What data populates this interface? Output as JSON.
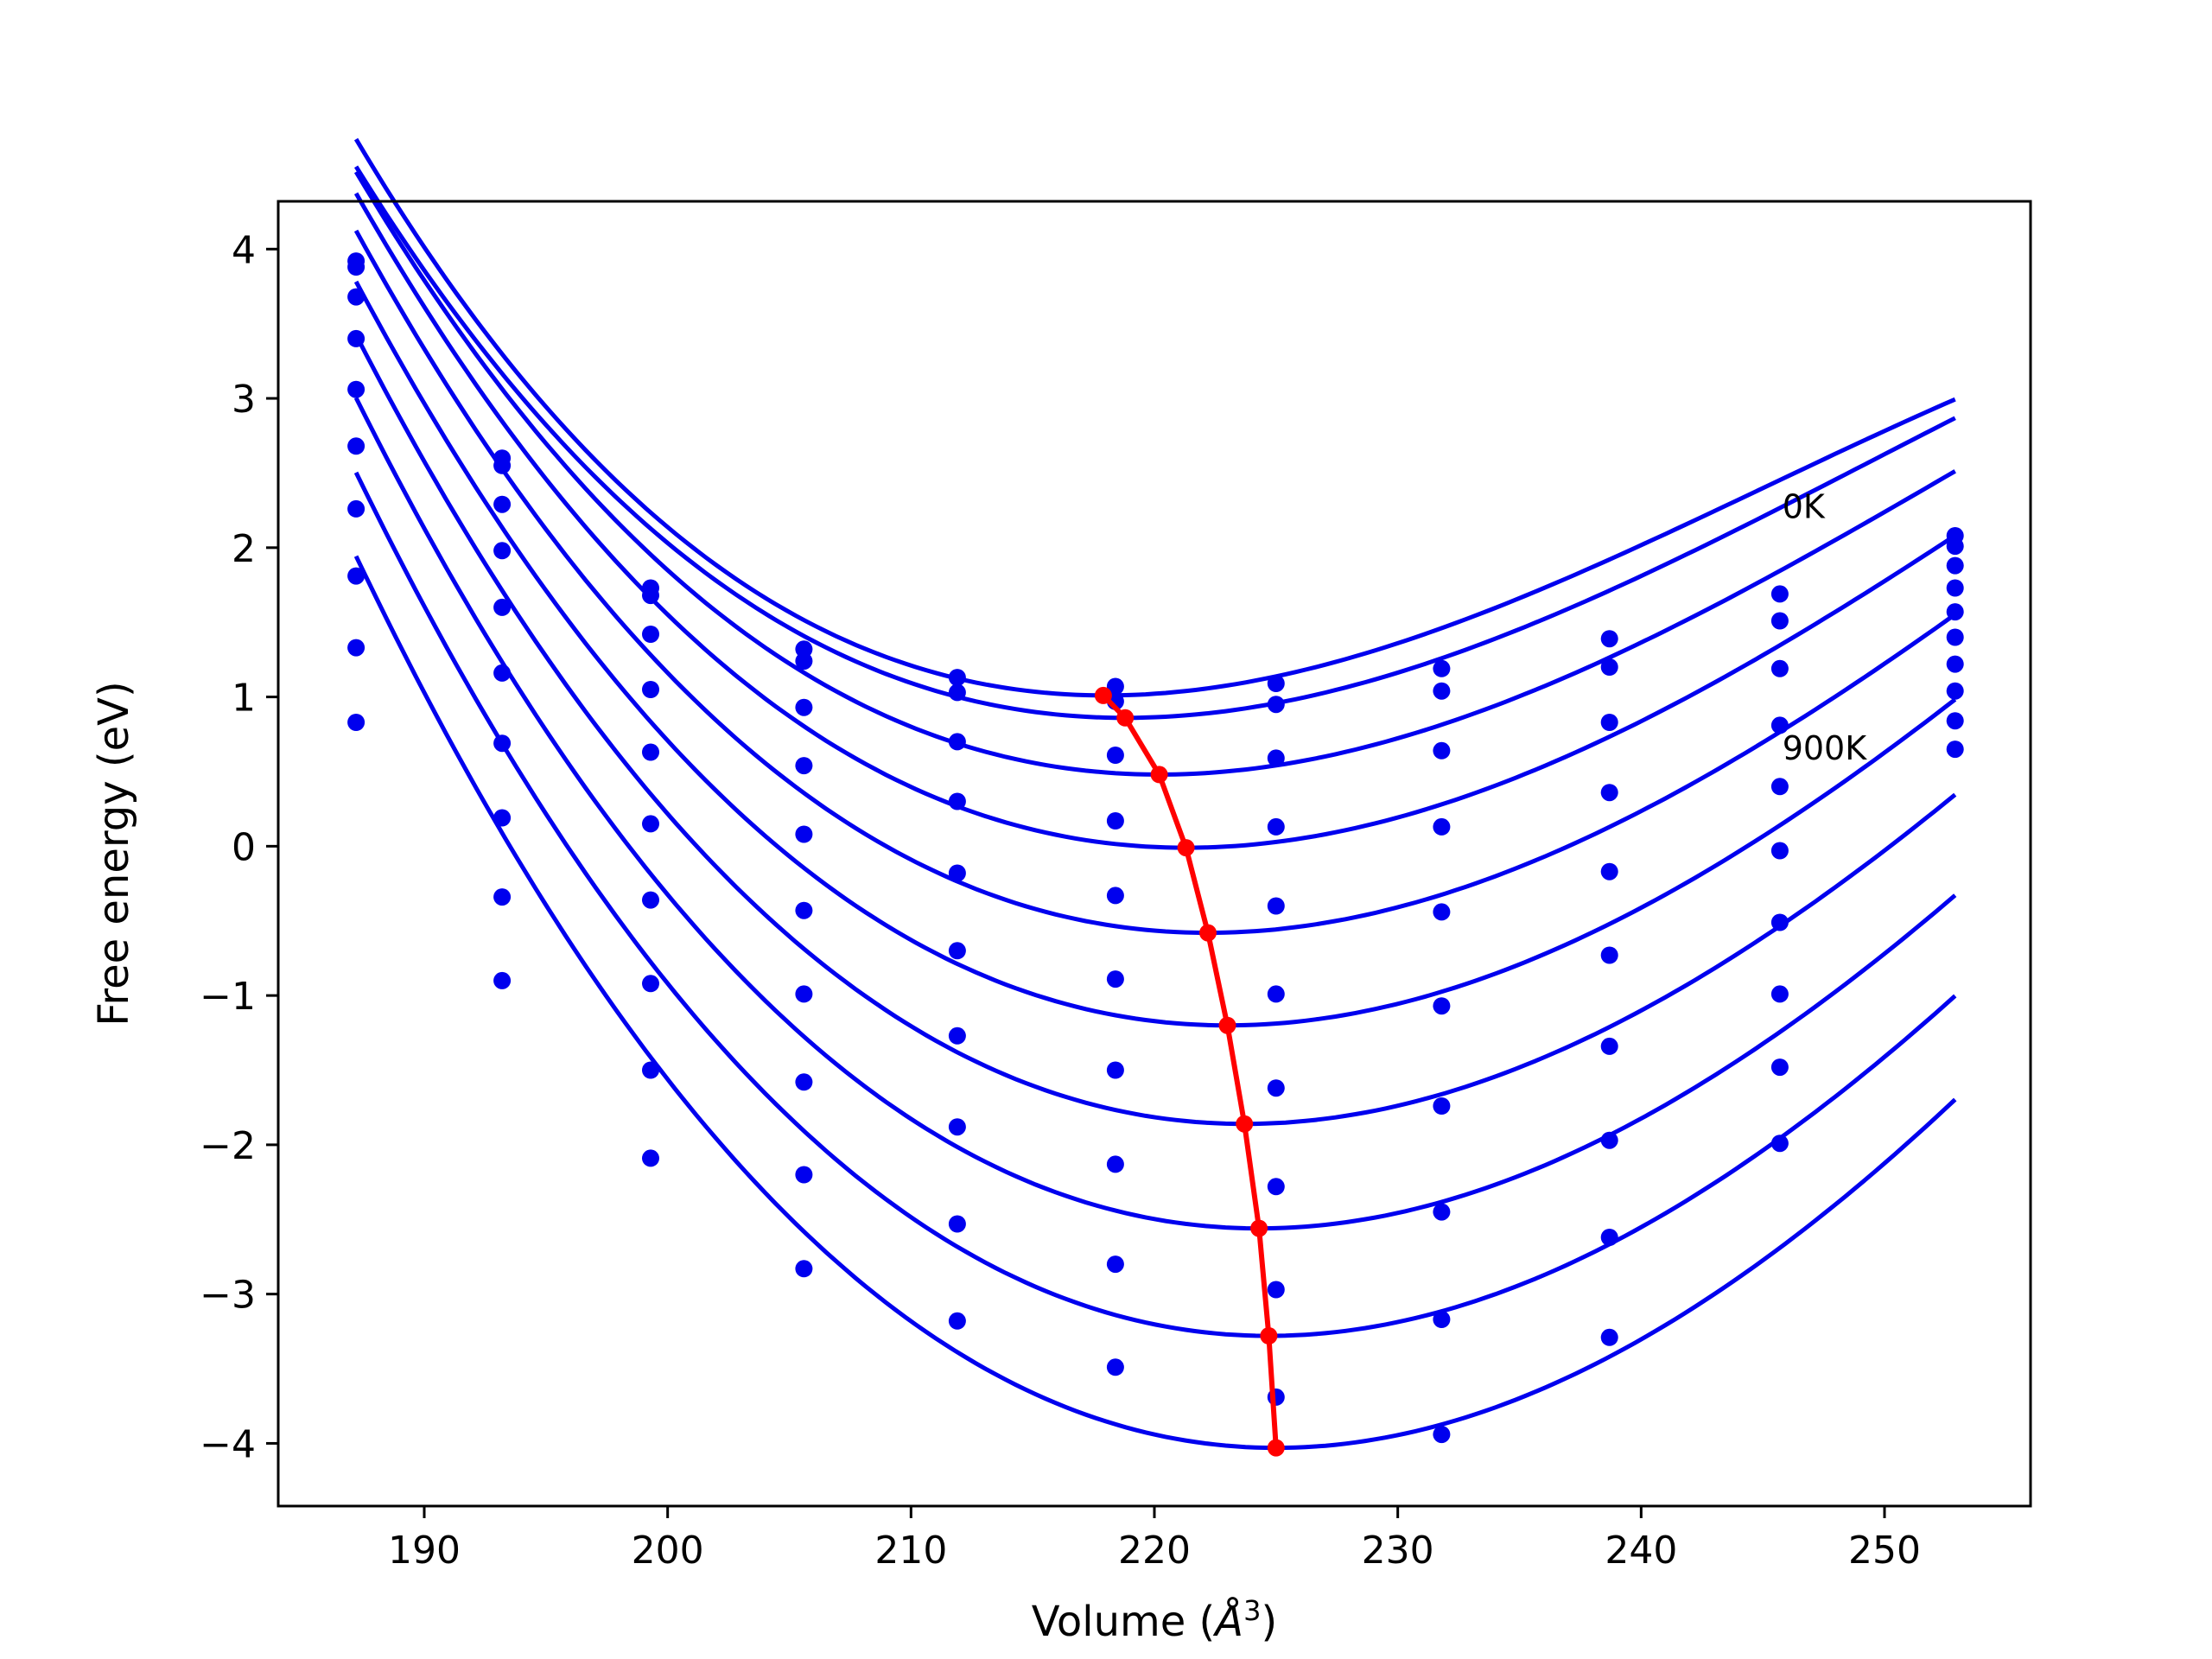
{
  "chart_data": {
    "type": "scatter",
    "title": "",
    "xlabel_main": "Volume (",
    "xlabel_unit": "Å",
    "xlabel_sup": "3",
    "xlabel_close": ")",
    "ylabel": "Free energy (eV)",
    "xlim": [
      184.0,
      256.0
    ],
    "ylim": [
      -4.42,
      4.32
    ],
    "xticks": [
      190,
      200,
      210,
      220,
      230,
      240,
      250
    ],
    "xtick_labels": [
      "190",
      "200",
      "210",
      "220",
      "230",
      "240",
      "250"
    ],
    "yticks": [
      4,
      3,
      2,
      1,
      0,
      -1,
      -2,
      -3,
      -4
    ],
    "ytick_labels": [
      "4",
      "3",
      "2",
      "1",
      "0",
      "−1",
      "−2",
      "−3",
      "−4"
    ],
    "grid": false,
    "legend": "none",
    "colors": {
      "curves": "#0000ee",
      "minima": "#ff0000",
      "axes": "#000000"
    },
    "annotations": [
      {
        "text": "0K",
        "x": 245.8,
        "y": 2.2
      },
      {
        "text": "900K",
        "x": 245.8,
        "y": 0.58
      }
    ],
    "volumes": [
      187.2,
      193.2,
      199.3,
      205.6,
      211.9,
      218.4,
      225.0,
      231.8,
      238.7,
      245.7,
      252.9
    ],
    "curve_x_range": [
      187.2,
      252.9
    ],
    "series": [
      {
        "name": "0K",
        "fit": {
          "v0": 218.0,
          "f0": 1.01,
          "a": 0.00285,
          "b": -3.5e-05
        },
        "points": [
          3.92,
          2.6,
          1.73,
          1.32,
          1.13,
          1.07,
          1.09,
          1.19,
          1.39,
          1.69,
          2.08
        ]
      },
      {
        "fit": {
          "v0": 218.8,
          "f0": 0.86,
          "a": 0.00275,
          "b": -3e-05
        },
        "points": [
          3.88,
          2.55,
          1.68,
          1.24,
          1.03,
          0.97,
          0.95,
          1.04,
          1.2,
          1.51,
          2.01
        ]
      },
      {
        "fit": {
          "v0": 220.2,
          "f0": 0.48,
          "a": 0.0028,
          "b": -2.75e-05
        },
        "points": [
          3.68,
          2.29,
          1.42,
          0.93,
          0.7,
          0.61,
          0.59,
          0.64,
          0.83,
          1.19,
          1.88
        ]
      },
      {
        "fit": {
          "v0": 221.3,
          "f0": -0.01,
          "a": 0.0029,
          "b": -2.55e-05
        },
        "points": [
          3.4,
          1.98,
          1.05,
          0.54,
          0.3,
          0.17,
          0.13,
          0.13,
          0.36,
          0.81,
          1.73
        ]
      },
      {
        "fit": {
          "v0": 222.2,
          "f0": -0.58,
          "a": 0.003,
          "b": -2.4e-05
        },
        "points": [
          3.06,
          1.6,
          0.63,
          0.08,
          -0.18,
          -0.33,
          -0.4,
          -0.44,
          -0.17,
          0.4,
          1.57
        ]
      },
      {
        "fit": {
          "v0": 223.0,
          "f0": -1.2,
          "a": 0.0031,
          "b": -2.2e-05
        },
        "points": [
          2.68,
          1.16,
          0.15,
          -0.43,
          -0.7,
          -0.89,
          -0.99,
          -1.07,
          -0.73,
          -0.03,
          1.4
        ]
      },
      {
        "fit": {
          "v0": 223.7,
          "f0": -1.86,
          "a": 0.0032,
          "b": -2.1e-05
        },
        "points": [
          2.26,
          0.69,
          -0.36,
          -0.99,
          -1.27,
          -1.5,
          -1.62,
          -1.74,
          -1.34,
          -0.51,
          1.22
        ]
      },
      {
        "fit": {
          "v0": 224.3,
          "f0": -2.56,
          "a": 0.0033,
          "b": -2e-05
        },
        "points": [
          1.81,
          0.19,
          -0.92,
          -1.58,
          -1.88,
          -2.13,
          -2.28,
          -2.45,
          -1.97,
          -0.99,
          1.04
        ]
      },
      {
        "fit": {
          "v0": 224.7,
          "f0": -3.28,
          "a": 0.0034,
          "b": -1.9e-05
        },
        "points": [
          1.33,
          -0.34,
          -1.5,
          -2.2,
          -2.53,
          -2.8,
          -2.97,
          -3.17,
          -2.62,
          -1.48,
          0.84
        ]
      },
      {
        "name": "900K",
        "fit": {
          "v0": 225.0,
          "f0": -4.03,
          "a": 0.0035,
          "b": -1.8e-05
        },
        "points": [
          0.83,
          -0.9,
          -2.09,
          -2.83,
          -3.18,
          -3.49,
          -3.69,
          -3.94,
          -3.29,
          -1.99,
          0.65
        ]
      }
    ],
    "minima_line": {
      "x": [
        217.9,
        218.8,
        220.2,
        221.3,
        222.2,
        223.0,
        223.7,
        224.3,
        224.7,
        225.0
      ],
      "y": [
        1.01,
        0.86,
        0.48,
        -0.01,
        -0.58,
        -1.2,
        -1.86,
        -2.56,
        -3.28,
        -4.03
      ]
    }
  }
}
